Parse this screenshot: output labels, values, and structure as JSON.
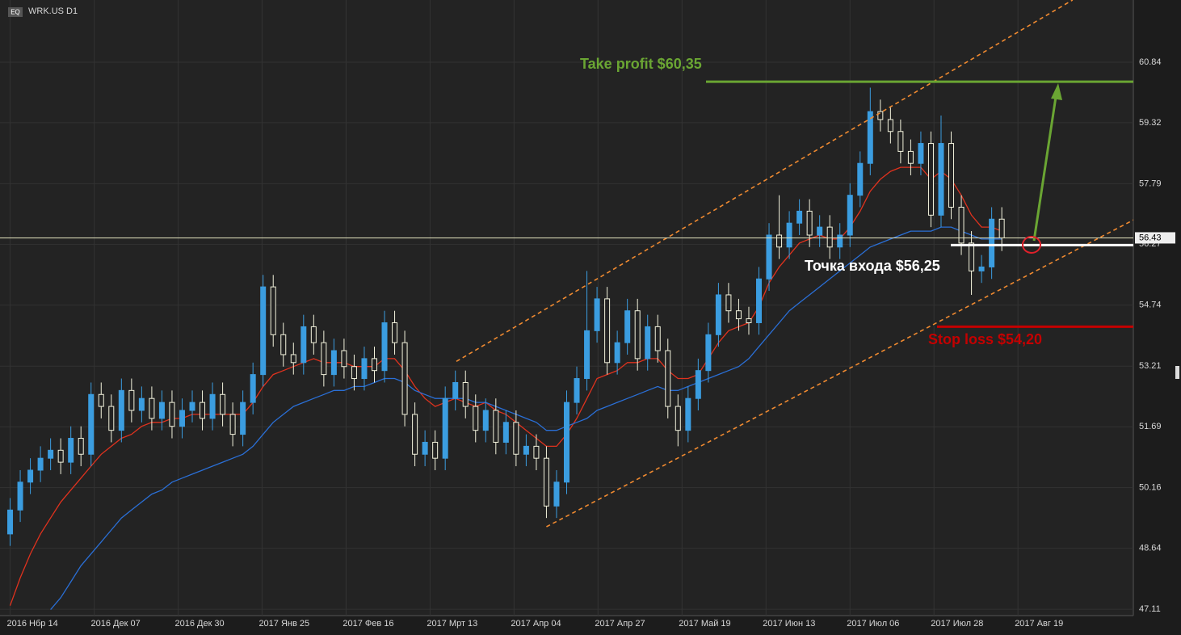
{
  "chart_data": {
    "type": "candlestick",
    "instrument": "WRK.US D1",
    "badge": "EQ",
    "ylim": [
      46.95,
      62.4
    ],
    "yticks": [
      47.11,
      48.64,
      50.16,
      51.69,
      53.21,
      54.74,
      56.27,
      57.79,
      59.32,
      60.84
    ],
    "xlim": [
      -1,
      111
    ],
    "xticks": [
      {
        "value": 0,
        "label": "2016 Нбр 14"
      },
      {
        "value": 8.3,
        "label": "2016 Дек 07"
      },
      {
        "value": 16.6,
        "label": "2016 Дек 30"
      },
      {
        "value": 24.9,
        "label": "2017 Янв 25"
      },
      {
        "value": 33.2,
        "label": "2017 Фев 16"
      },
      {
        "value": 41.5,
        "label": "2017 Мрт 13"
      },
      {
        "value": 49.8,
        "label": "2017 Апр 04"
      },
      {
        "value": 58.1,
        "label": "2017 Апр 27"
      },
      {
        "value": 66.4,
        "label": "2017 Май 19"
      },
      {
        "value": 74.7,
        "label": "2017 Июн 13"
      },
      {
        "value": 83,
        "label": "2017 Июл 06"
      },
      {
        "value": 91.3,
        "label": "2017 Июл 28"
      },
      {
        "value": 99.6,
        "label": "2017 Авг 19"
      }
    ],
    "grid": true,
    "up_color": "#3b9de0",
    "down_color": "#f2f2dc",
    "open": [
      49.0,
      49.6,
      50.3,
      50.6,
      50.9,
      51.1,
      50.8,
      51.4,
      51.0,
      52.5,
      52.2,
      51.6,
      52.6,
      52.1,
      52.4,
      51.9,
      52.3,
      51.7,
      52.1,
      52.3,
      51.9,
      52.5,
      52.0,
      51.5,
      52.3,
      53.0,
      55.2,
      54.0,
      53.5,
      53.3,
      54.2,
      53.8,
      53.0,
      53.6,
      53.2,
      52.9,
      53.4,
      53.1,
      54.3,
      53.8,
      52.0,
      51.0,
      51.3,
      50.9,
      52.4,
      52.8,
      52.2,
      51.6,
      52.1,
      51.3,
      51.8,
      51.0,
      51.2,
      50.9,
      49.7,
      50.3,
      52.3,
      52.9,
      54.1,
      54.9,
      53.3,
      53.8,
      54.6,
      53.4,
      54.2,
      53.6,
      52.2,
      51.6,
      52.4,
      53.1,
      54.0,
      55.0,
      54.6,
      54.4,
      54.3,
      55.4,
      56.5,
      56.2,
      56.8,
      57.1,
      56.5,
      56.7,
      56.2,
      56.5,
      57.5,
      58.3,
      59.6,
      59.4,
      59.1,
      58.6,
      58.3,
      58.8,
      57.0,
      58.8,
      57.2,
      56.3,
      55.6,
      55.7,
      56.9
    ],
    "high": [
      49.9,
      50.6,
      50.9,
      51.2,
      51.4,
      51.4,
      51.7,
      51.7,
      52.8,
      52.8,
      52.5,
      52.9,
      52.9,
      52.7,
      52.7,
      52.6,
      52.6,
      52.4,
      52.6,
      52.6,
      52.8,
      52.8,
      52.3,
      52.6,
      53.3,
      55.5,
      55.5,
      54.3,
      53.8,
      54.5,
      54.5,
      54.1,
      53.9,
      53.9,
      53.5,
      53.7,
      53.7,
      54.6,
      54.6,
      54.1,
      52.3,
      51.6,
      51.6,
      52.7,
      53.1,
      53.1,
      52.5,
      52.4,
      52.4,
      52.1,
      52.1,
      51.5,
      51.5,
      51.2,
      50.6,
      52.6,
      53.2,
      55.6,
      55.2,
      55.2,
      54.1,
      54.9,
      54.9,
      54.5,
      54.5,
      53.9,
      52.5,
      52.7,
      53.4,
      54.3,
      55.3,
      55.3,
      54.9,
      54.7,
      55.7,
      56.8,
      57.5,
      57.1,
      57.4,
      57.4,
      57.0,
      57.0,
      56.8,
      57.8,
      58.6,
      60.2,
      59.9,
      59.7,
      59.4,
      58.9,
      59.1,
      59.1,
      59.5,
      59.1,
      57.5,
      56.6,
      56.0,
      57.2,
      57.2
    ],
    "low": [
      48.7,
      49.3,
      50.0,
      50.3,
      50.6,
      50.5,
      50.5,
      50.7,
      50.7,
      51.9,
      51.3,
      51.3,
      51.8,
      51.8,
      51.6,
      51.6,
      51.4,
      51.4,
      51.8,
      51.6,
      51.6,
      51.7,
      51.2,
      51.2,
      52.0,
      52.7,
      53.7,
      53.2,
      53.0,
      53.0,
      53.5,
      52.7,
      52.7,
      52.9,
      52.6,
      52.6,
      52.8,
      52.8,
      53.5,
      51.7,
      50.7,
      50.7,
      50.6,
      50.6,
      52.1,
      51.9,
      51.3,
      51.3,
      51.0,
      51.0,
      50.7,
      50.7,
      50.6,
      49.4,
      49.4,
      50.0,
      52.0,
      52.6,
      53.8,
      53.0,
      53.0,
      53.5,
      53.1,
      53.1,
      53.3,
      51.9,
      51.2,
      51.3,
      52.1,
      52.8,
      53.7,
      54.3,
      54.1,
      54.0,
      54.0,
      55.1,
      55.9,
      55.9,
      56.5,
      56.2,
      56.2,
      55.9,
      55.9,
      56.2,
      57.2,
      58.0,
      59.1,
      58.8,
      58.3,
      58.0,
      58.0,
      56.7,
      56.7,
      56.9,
      56.0,
      55.0,
      55.3,
      55.4,
      56.1
    ],
    "close": [
      49.6,
      50.3,
      50.6,
      50.9,
      51.1,
      50.8,
      51.4,
      51.0,
      52.5,
      52.2,
      51.6,
      52.6,
      52.1,
      52.4,
      51.9,
      52.3,
      51.7,
      52.1,
      52.3,
      51.9,
      52.5,
      52.0,
      51.5,
      52.3,
      53.0,
      55.2,
      54.0,
      53.5,
      53.3,
      54.2,
      53.8,
      53.0,
      53.6,
      53.2,
      52.9,
      53.4,
      53.1,
      54.3,
      53.8,
      52.0,
      51.0,
      51.3,
      50.9,
      52.4,
      52.8,
      52.2,
      51.6,
      52.1,
      51.3,
      51.8,
      51.0,
      51.2,
      50.9,
      49.7,
      50.3,
      52.3,
      52.9,
      54.1,
      54.9,
      53.3,
      53.8,
      54.6,
      53.4,
      54.2,
      53.6,
      52.2,
      51.6,
      52.4,
      53.1,
      54.0,
      55.0,
      54.6,
      54.4,
      54.3,
      55.4,
      56.5,
      56.2,
      56.8,
      57.1,
      56.5,
      56.7,
      56.2,
      56.5,
      57.5,
      58.3,
      59.6,
      59.4,
      59.1,
      58.6,
      58.3,
      58.8,
      57.0,
      58.8,
      57.2,
      56.3,
      55.6,
      55.7,
      56.9,
      56.43
    ],
    "series": [
      {
        "color": "#e0321e",
        "values": [
          47.2,
          47.9,
          48.5,
          49.0,
          49.4,
          49.8,
          50.1,
          50.4,
          50.7,
          51.0,
          51.2,
          51.4,
          51.5,
          51.7,
          51.8,
          51.8,
          51.9,
          51.9,
          52.0,
          52.0,
          52.0,
          52.0,
          52.0,
          52.0,
          52.3,
          52.7,
          53.0,
          53.1,
          53.2,
          53.3,
          53.4,
          53.3,
          53.3,
          53.3,
          53.2,
          53.2,
          53.2,
          53.4,
          53.4,
          53.1,
          52.7,
          52.4,
          52.2,
          52.3,
          52.4,
          52.3,
          52.2,
          52.3,
          52.1,
          52.0,
          51.8,
          51.6,
          51.4,
          51.2,
          51.2,
          51.5,
          51.9,
          52.4,
          52.9,
          53.0,
          53.1,
          53.3,
          53.3,
          53.4,
          53.4,
          53.1,
          52.9,
          52.9,
          53.0,
          53.4,
          53.8,
          54.1,
          54.2,
          54.3,
          54.7,
          55.3,
          55.7,
          56.0,
          56.3,
          56.4,
          56.5,
          56.4,
          56.4,
          56.7,
          57.1,
          57.6,
          57.9,
          58.1,
          58.2,
          58.2,
          58.2,
          57.9,
          58.1,
          57.9,
          57.5,
          57.0,
          56.7,
          56.7,
          56.6
        ]
      },
      {
        "color": "#2a6fd6",
        "values": [
          null,
          null,
          null,
          null,
          47.1,
          47.4,
          47.8,
          48.2,
          48.5,
          48.8,
          49.1,
          49.4,
          49.6,
          49.8,
          50.0,
          50.1,
          50.3,
          50.4,
          50.5,
          50.6,
          50.7,
          50.8,
          50.9,
          51.0,
          51.2,
          51.5,
          51.8,
          52.0,
          52.2,
          52.3,
          52.4,
          52.5,
          52.6,
          52.6,
          52.7,
          52.7,
          52.8,
          52.9,
          52.9,
          52.8,
          52.6,
          52.5,
          52.4,
          52.4,
          52.4,
          52.4,
          52.3,
          52.3,
          52.2,
          52.1,
          52.0,
          51.9,
          51.8,
          51.6,
          51.6,
          51.7,
          51.8,
          51.9,
          52.1,
          52.2,
          52.3,
          52.4,
          52.5,
          52.6,
          52.7,
          52.6,
          52.6,
          52.7,
          52.8,
          52.9,
          53.0,
          53.1,
          53.2,
          53.4,
          53.7,
          54.0,
          54.3,
          54.6,
          54.8,
          55.0,
          55.2,
          55.4,
          55.6,
          55.8,
          56.0,
          56.2,
          56.3,
          56.4,
          56.5,
          56.6,
          56.6,
          56.6,
          56.7,
          56.7,
          56.6,
          56.5,
          56.4,
          56.4,
          56.4
        ]
      }
    ],
    "last_price": 56.43,
    "channel": [
      {
        "x": [
          44.1,
          105.0
        ],
        "y": [
          53.33,
          62.4
        ]
      },
      {
        "x": [
          53.0,
          114.7
        ],
        "y": [
          49.18,
          57.37
        ]
      }
    ],
    "levels": [
      {
        "label": "Take profit $60,35",
        "value": 60.35,
        "color": "#6aa533"
      },
      {
        "label": "Точка входа $56,25",
        "value": 56.25,
        "color": "#ffffff"
      },
      {
        "label": "Stop loss $54,20",
        "value": 54.2,
        "color": "#c40000"
      }
    ]
  }
}
